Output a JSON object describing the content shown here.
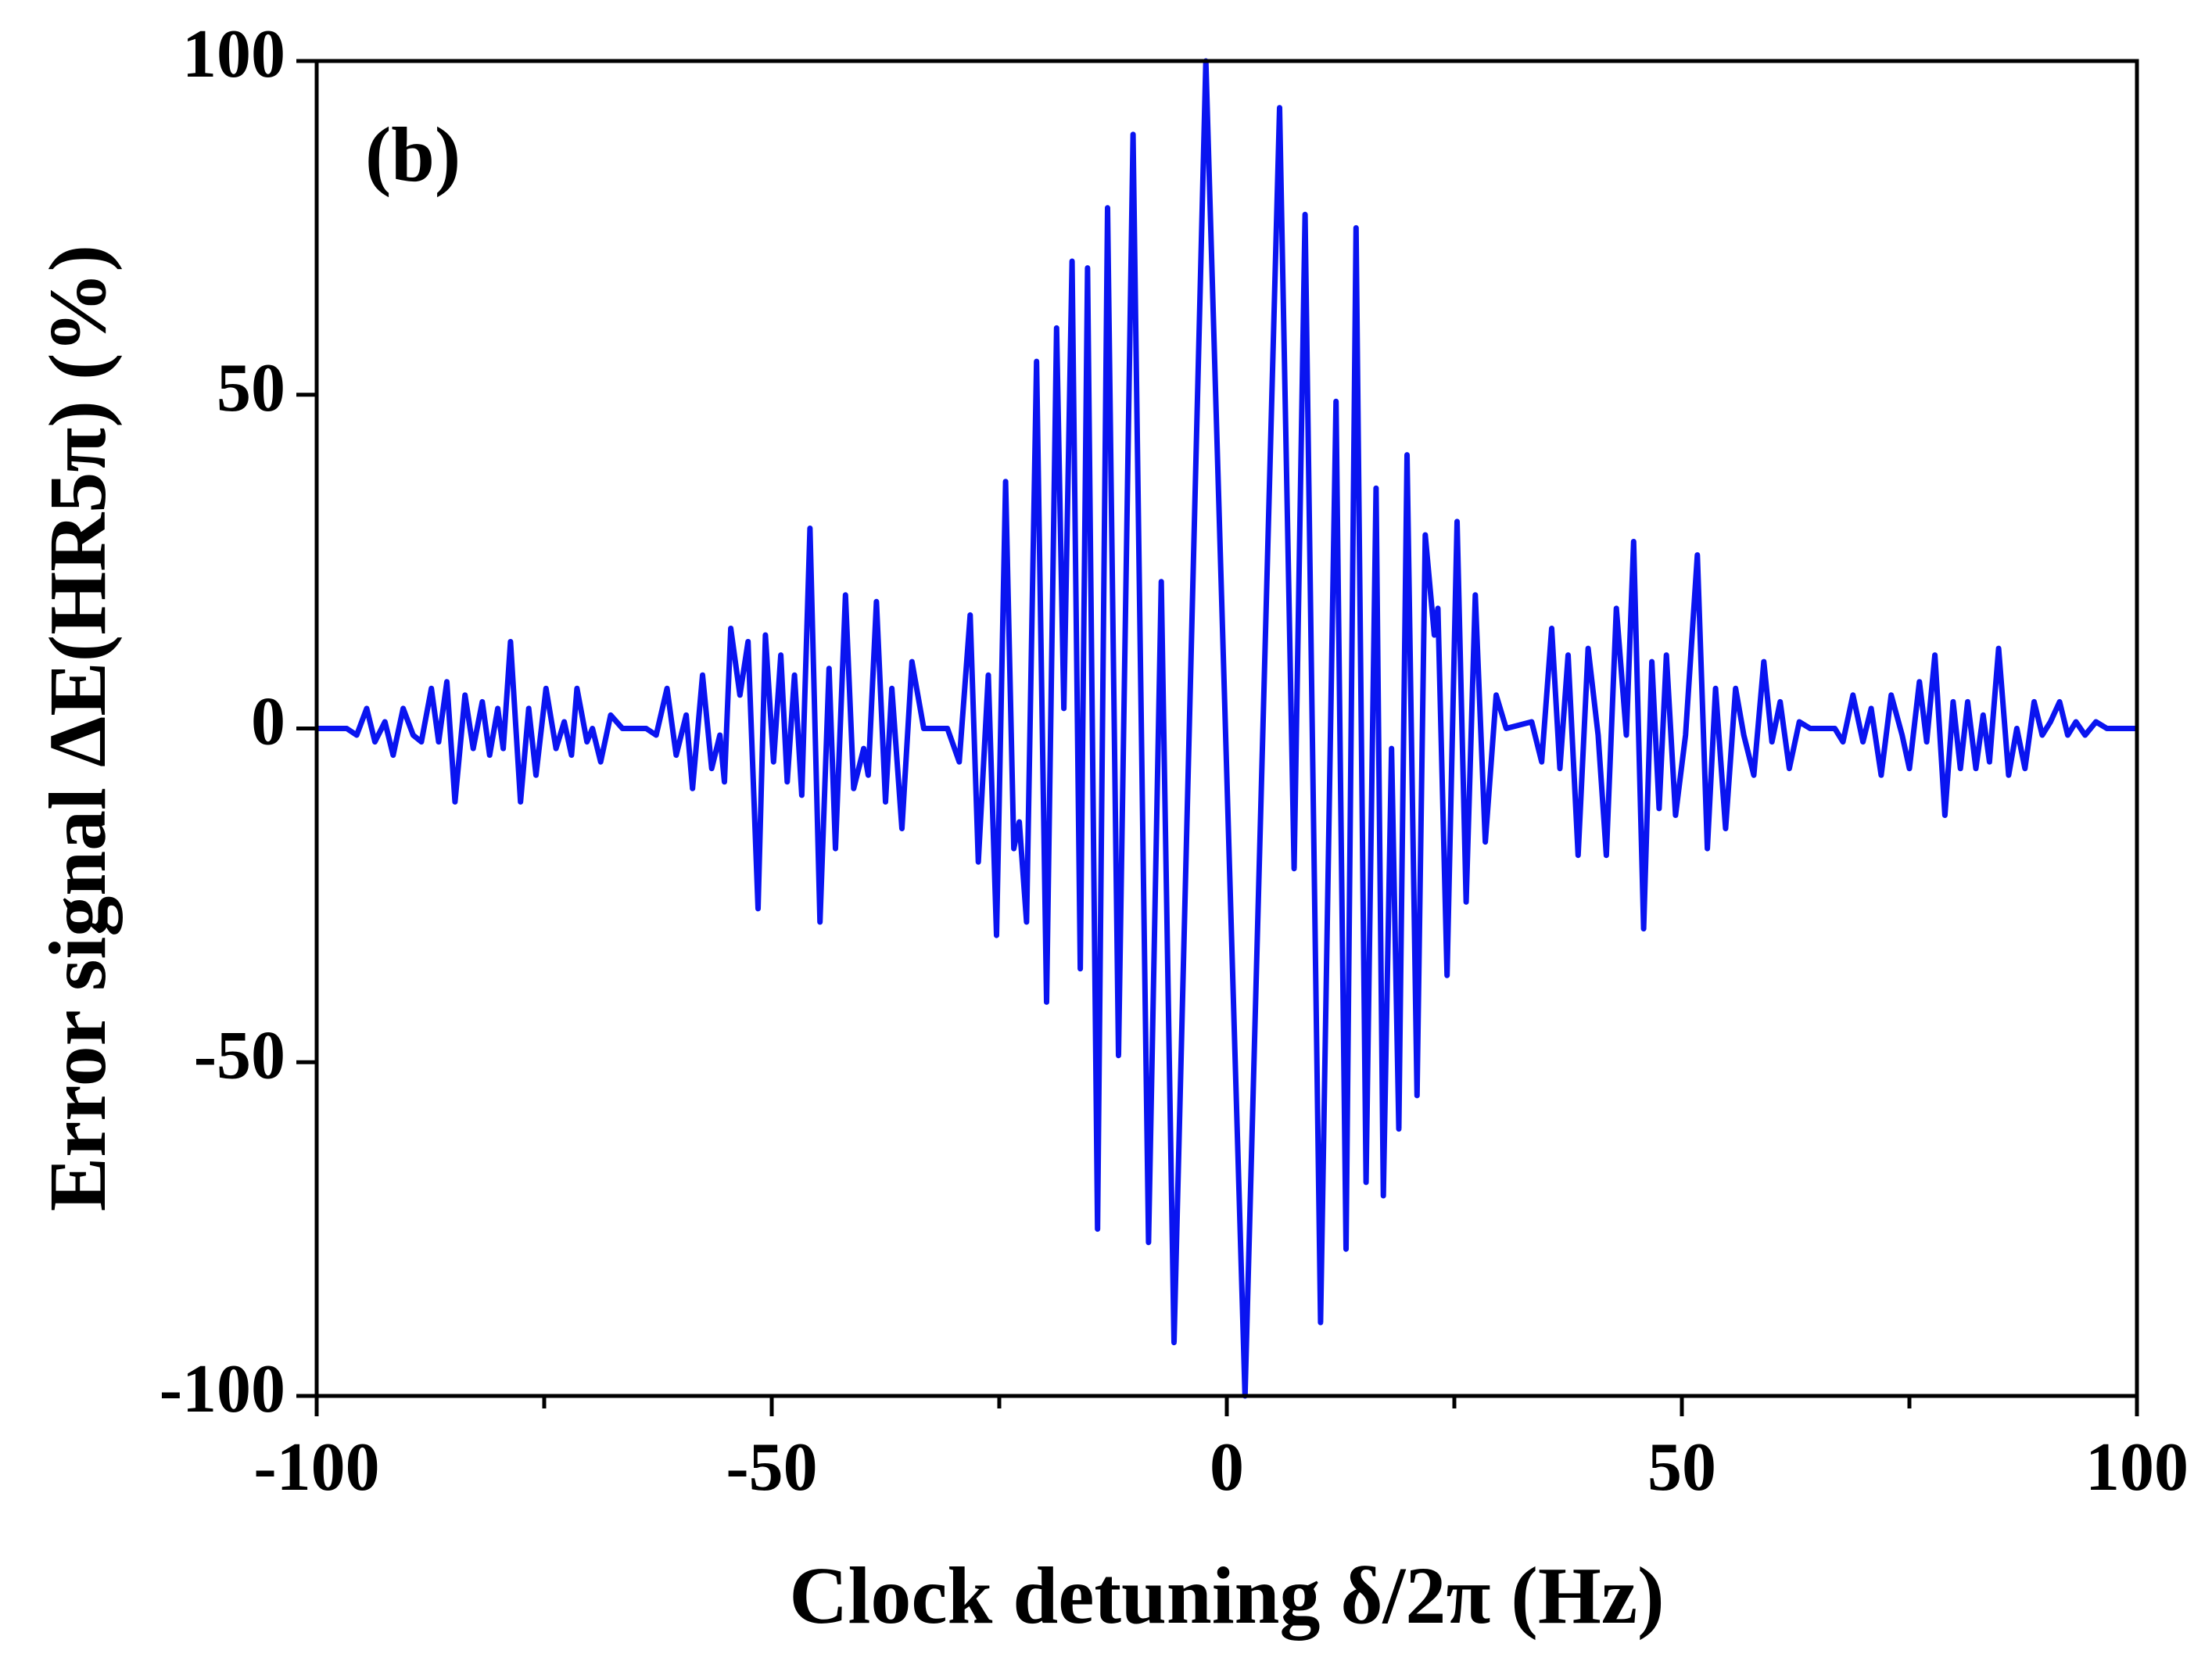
{
  "chart_data": {
    "type": "line",
    "annotation": "(b)",
    "xlabel": "Clock detuning δ/2π (Hz)",
    "ylabel": "Error signal ΔE(HR5π) (%)",
    "xlim": [
      -100,
      100
    ],
    "xticks": [
      -100,
      -50,
      0,
      50,
      100
    ],
    "xminor_ticks": [
      -75,
      -25,
      25,
      75
    ],
    "ylim": [
      -100,
      100
    ],
    "yticks": [
      -100,
      -50,
      0,
      50,
      100
    ],
    "grid": false,
    "series": [
      {
        "color": "#0a14f0",
        "x": [
          -100,
          -96.7,
          -95.6,
          -94.5,
          -93.6,
          -92.5,
          -91.6,
          -90.5,
          -89.4,
          -88.5,
          -87.4,
          -86.6,
          -85.7,
          -84.8,
          -83.7,
          -82.8,
          -81.8,
          -81.0,
          -80.1,
          -79.5,
          -78.7,
          -77.6,
          -76.7,
          -75.9,
          -74.8,
          -73.7,
          -72.8,
          -72.0,
          -71.4,
          -70.3,
          -69.7,
          -68.8,
          -67.7,
          -66.4,
          -63.8,
          -62.7,
          -61.5,
          -60.5,
          -59.4,
          -58.7,
          -57.6,
          -56.6,
          -55.7,
          -55.2,
          -54.5,
          -53.5,
          -52.6,
          -51.5,
          -50.7,
          -49.8,
          -49.0,
          -48.3,
          -47.5,
          -46.7,
          -45.8,
          -44.7,
          -43.7,
          -43.0,
          -41.9,
          -41.0,
          -39.9,
          -39.4,
          -38.5,
          -37.5,
          -36.8,
          -35.7,
          -34.6,
          -33.3,
          -30.7,
          -29.4,
          -28.2,
          -27.3,
          -26.2,
          -25.3,
          -24.3,
          -23.4,
          -22.8,
          -22.0,
          -20.9,
          -19.8,
          -18.7,
          -17.9,
          -17.0,
          -16.1,
          -15.3,
          -14.2,
          -13.1,
          -11.9,
          -10.3,
          -8.6,
          -7.2,
          -5.8,
          -2.3,
          2.0,
          5.8,
          7.4,
          8.6,
          10.3,
          12.0,
          13.1,
          14.2,
          15.3,
          16.4,
          17.2,
          18.1,
          18.9,
          19.8,
          20.9,
          21.8,
          22.8,
          23.2,
          24.2,
          25.3,
          26.3,
          27.3,
          28.4,
          29.6,
          30.7,
          33.5,
          34.6,
          35.7,
          36.6,
          37.5,
          38.6,
          39.7,
          40.8,
          41.7,
          42.8,
          43.9,
          44.7,
          45.8,
          46.7,
          47.5,
          48.3,
          49.3,
          50.4,
          51.7,
          52.8,
          53.7,
          54.8,
          55.9,
          56.8,
          57.9,
          59.0,
          59.9,
          60.8,
          61.8,
          62.9,
          64.1,
          66.8,
          67.7,
          68.8,
          69.9,
          70.8,
          71.9,
          73.0,
          74.2,
          75.0,
          76.1,
          76.9,
          77.8,
          78.9,
          79.8,
          80.6,
          81.4,
          82.3,
          83.1,
          83.8,
          84.8,
          85.9,
          86.8,
          87.7,
          88.7,
          89.6,
          90.5,
          91.5,
          92.4,
          93.3,
          94.3,
          95.5,
          96.7,
          100
        ],
        "values": [
          0,
          0,
          -1,
          3,
          -2,
          1,
          -4,
          3,
          -1,
          -2,
          6,
          -2,
          7,
          -11,
          5,
          -3,
          4,
          -4,
          3,
          -3,
          13,
          -11,
          3,
          -7,
          6,
          -3,
          1,
          -4,
          6,
          -2,
          0,
          -5,
          2,
          0,
          0,
          -1,
          6,
          -4,
          2,
          -9,
          8,
          -6,
          -1,
          -8,
          15,
          5,
          13,
          -27,
          14,
          -5,
          11,
          -8,
          8,
          -10,
          30,
          -29,
          9,
          -18,
          20,
          -9,
          -3,
          -7,
          19,
          -11,
          6,
          -15,
          10,
          0,
          0,
          -5,
          17,
          -20,
          8,
          -31,
          37,
          -18,
          -14,
          -29,
          55,
          -41,
          60,
          3,
          70,
          -36,
          69,
          -75,
          78,
          -49,
          89,
          -77,
          22,
          -92,
          100,
          -100,
          93,
          -21,
          77,
          -89,
          49,
          -78,
          75,
          -68,
          36,
          -70,
          -3,
          -60,
          41,
          -55,
          29,
          14,
          18,
          -37,
          31,
          -26,
          20,
          -17,
          5,
          0,
          1,
          -5,
          15,
          -6,
          11,
          -19,
          12,
          -1,
          -19,
          18,
          -1,
          28,
          -30,
          10,
          -12,
          11,
          -13,
          -1,
          26,
          -18,
          6,
          -15,
          6,
          -1,
          -7,
          10,
          -2,
          4,
          -6,
          1,
          0,
          0,
          -2,
          5,
          -2,
          3,
          -7,
          5,
          -1,
          -6,
          7,
          -2,
          11,
          -13,
          4,
          -6,
          4,
          -6,
          2,
          -5,
          12,
          -7,
          0,
          -6,
          4,
          -1,
          1,
          4,
          -1,
          1,
          -1,
          1,
          0,
          0
        ]
      }
    ]
  }
}
